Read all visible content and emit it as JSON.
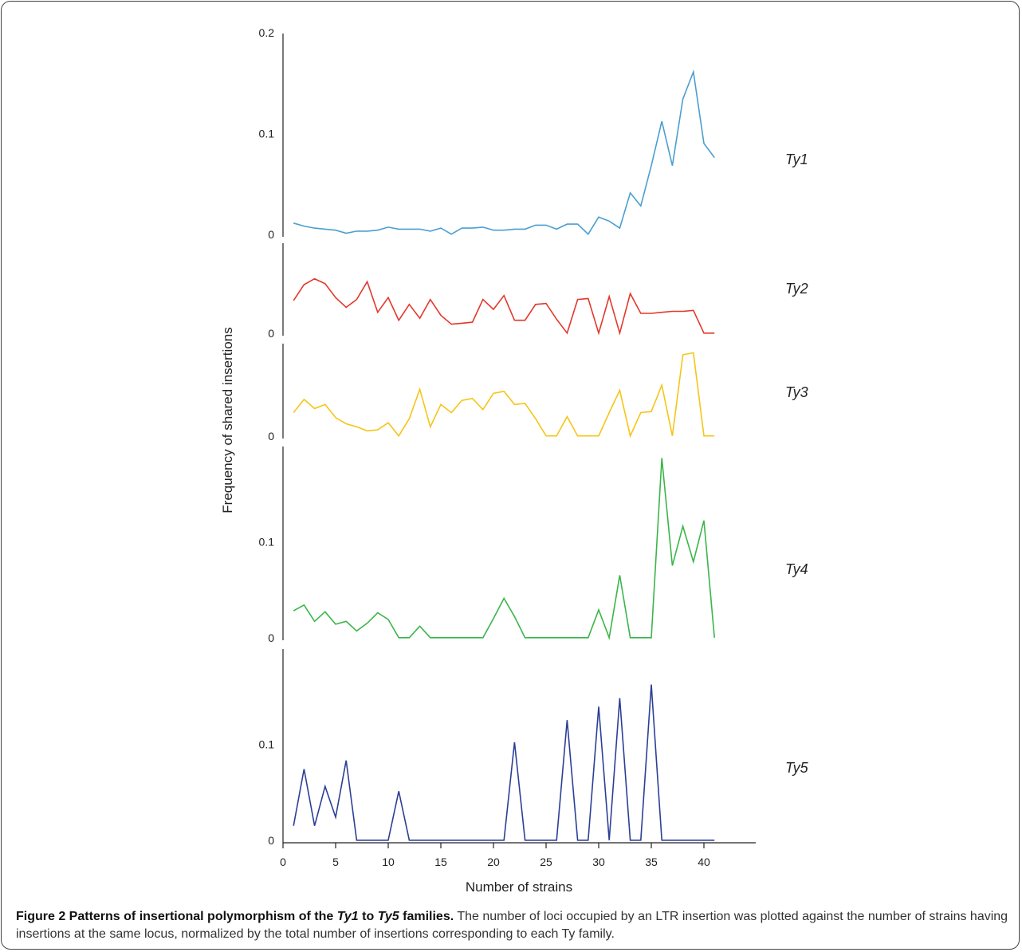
{
  "chart_data": {
    "type": "line",
    "xlabel": "Number of strains",
    "ylabel": "Frequency of shared insertions",
    "x_ticks": [
      "0",
      "5",
      "10",
      "15",
      "20",
      "25",
      "30",
      "35",
      "40"
    ],
    "x": [
      1,
      2,
      3,
      4,
      5,
      6,
      7,
      8,
      9,
      10,
      11,
      12,
      13,
      14,
      15,
      16,
      17,
      18,
      19,
      20,
      21,
      22,
      23,
      24,
      25,
      26,
      27,
      28,
      29,
      30,
      31,
      32,
      33,
      34,
      35,
      36,
      37,
      38,
      39,
      40,
      41
    ],
    "panels": [
      {
        "name": "Ty1",
        "color": "#4a9fd0",
        "ylim": [
          0,
          0.2
        ],
        "y_ticks": [
          {
            "value": 0,
            "label": "0"
          },
          {
            "value": 0.1,
            "label": "0.1"
          },
          {
            "value": 0.2,
            "label": "0.2"
          }
        ],
        "values": [
          0.012,
          0.009,
          0.007,
          0.006,
          0.005,
          0.002,
          0.004,
          0.004,
          0.005,
          0.008,
          0.006,
          0.006,
          0.006,
          0.004,
          0.007,
          0.001,
          0.007,
          0.007,
          0.008,
          0.005,
          0.005,
          0.006,
          0.006,
          0.01,
          0.01,
          0.006,
          0.011,
          0.011,
          0.001,
          0.018,
          0.014,
          0.007,
          0.042,
          0.029,
          0.069,
          0.113,
          0.069,
          0.135,
          0.162,
          0.091,
          0.077
        ]
      },
      {
        "name": "Ty2",
        "color": "#e2382b",
        "ylim": [
          0,
          0.092
        ],
        "y_ticks": [
          {
            "value": 0,
            "label": "0"
          }
        ],
        "values": [
          0.034,
          0.05,
          0.056,
          0.051,
          0.037,
          0.027,
          0.035,
          0.053,
          0.022,
          0.037,
          0.014,
          0.03,
          0.016,
          0.035,
          0.019,
          0.01,
          0.011,
          0.012,
          0.035,
          0.025,
          0.039,
          0.014,
          0.014,
          0.03,
          0.031,
          0.015,
          0.001,
          0.035,
          0.036,
          0.001,
          0.038,
          0.001,
          0.041,
          0.021,
          0.021,
          0.022,
          0.023,
          0.023,
          0.024,
          0.001,
          0.001
        ]
      },
      {
        "name": "Ty3",
        "color": "#f5c518",
        "ylim": [
          0,
          0.092
        ],
        "y_ticks": [
          {
            "value": 0,
            "label": "0"
          }
        ],
        "values": [
          0.024,
          0.037,
          0.028,
          0.032,
          0.019,
          0.013,
          0.01,
          0.006,
          0.007,
          0.014,
          0.001,
          0.018,
          0.047,
          0.01,
          0.032,
          0.024,
          0.036,
          0.038,
          0.027,
          0.043,
          0.045,
          0.032,
          0.033,
          0.018,
          0.001,
          0.001,
          0.02,
          0.001,
          0.001,
          0.001,
          0.024,
          0.046,
          0.001,
          0.024,
          0.025,
          0.051,
          0.001,
          0.081,
          0.083,
          0.001,
          0.001
        ]
      },
      {
        "name": "Ty4",
        "color": "#3bb54a",
        "ylim": [
          0,
          0.2
        ],
        "y_ticks": [
          {
            "value": 0,
            "label": "0"
          },
          {
            "value": 0.1,
            "label": "0.1"
          }
        ],
        "values": [
          0.029,
          0.035,
          0.018,
          0.028,
          0.015,
          0.018,
          0.008,
          0.016,
          0.027,
          0.02,
          0.001,
          0.001,
          0.013,
          0.001,
          0.001,
          0.001,
          0.001,
          0.001,
          0.001,
          0.021,
          0.042,
          0.023,
          0.001,
          0.001,
          0.001,
          0.001,
          0.001,
          0.001,
          0.001,
          0.03,
          0.001,
          0.066,
          0.001,
          0.001,
          0.001,
          0.188,
          0.076,
          0.117,
          0.08,
          0.123,
          0.001
        ]
      },
      {
        "name": "Ty5",
        "color": "#2c3f96",
        "ylim": [
          0,
          0.2
        ],
        "y_ticks": [
          {
            "value": 0,
            "label": "0"
          },
          {
            "value": 0.1,
            "label": "0.1"
          }
        ],
        "values": [
          0.016,
          0.075,
          0.016,
          0.057,
          0.025,
          0.084,
          0.001,
          0.001,
          0.001,
          0.001,
          0.052,
          0.001,
          0.001,
          0.001,
          0.001,
          0.001,
          0.001,
          0.001,
          0.001,
          0.001,
          0.001,
          0.103,
          0.001,
          0.001,
          0.001,
          0.001,
          0.126,
          0.001,
          0.001,
          0.14,
          0.001,
          0.149,
          0.001,
          0.001,
          0.163,
          0.001,
          0.001,
          0.001,
          0.001,
          0.001,
          0.001
        ]
      }
    ]
  },
  "caption": {
    "bold_prefix": "Figure 2 Patterns of insertional polymorphism of the ",
    "bold_italic_1": "Ty1",
    "bold_mid": " to ",
    "bold_italic_2": "Ty5",
    "bold_suffix": " families.",
    "text": " The number of loci occupied by an LTR insertion was plotted against the number of strains having insertions at the same locus, normalized by the total number of insertions corresponding to each Ty family."
  }
}
